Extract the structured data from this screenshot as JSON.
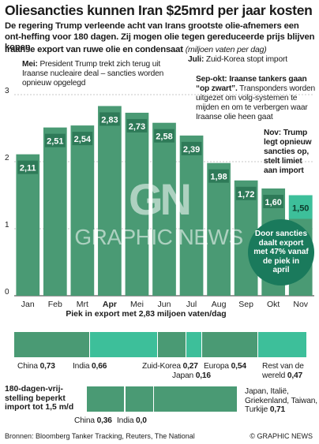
{
  "title": "Oliesancties kunnen Iran $25mrd per jaar kosten",
  "subtitle": "De regering Trump verleende acht van Irans grootste olie-afnemers een ont-heffing voor 180 dagen. Zij mogen olie tegen gereduceerde prijs blijven kopen",
  "axis_title": "Iraanse export van ruwe olie en condensaat",
  "axis_unit": "(miljoen vaten per dag)",
  "colors": {
    "bar": "#4a9a74",
    "bar_dark": "#2e7a58",
    "accent_teal": "#3dbf9a",
    "circle": "#1a7a5c"
  },
  "chart_data": {
    "type": "bar",
    "categories": [
      "Jan",
      "Feb",
      "Mrt",
      "Apr",
      "Mei",
      "Jun",
      "Jul",
      "Aug",
      "Sep",
      "Okt",
      "Nov"
    ],
    "values": [
      2.11,
      2.51,
      2.54,
      2.83,
      2.73,
      2.58,
      2.39,
      1.98,
      1.72,
      1.6,
      1.5
    ],
    "value_labels": [
      "2,11",
      "2,51",
      "2,54",
      "2,83",
      "2,73",
      "2,58",
      "2,39",
      "1,98",
      "1,72",
      "1,60",
      "1,50"
    ],
    "highlight_category": "Apr",
    "yticks": [
      "0",
      "1",
      "2",
      "3"
    ],
    "ylim": [
      0,
      3.2
    ],
    "grid": true
  },
  "annotations": {
    "mei": {
      "bold": "Mei:",
      "text": " President Trump trekt zich terug uit Iraanse nucleaire deal – sancties worden opnieuw opgelegd"
    },
    "juli": {
      "bold": "Juli:",
      "text": " Zuid-Korea stopt import"
    },
    "sep_okt": {
      "bold": "Sep-okt: Iraanse tankers gaan “op zwart”.",
      "text": " Transponders worden uitgezet om volg-systemen te mijden en om te verbergen waar Iraanse olie heen gaat"
    },
    "nov": {
      "bold": "Nov: Trump legt opnieuw sancties op, stelt limiet aan import",
      "text": ""
    }
  },
  "circle_text": "Door sancties daalt export met 47% vanaf de piek in april",
  "peak": {
    "title": "Piek in export met 2,83 miljoen vaten/dag",
    "labels": [
      {
        "name": "China",
        "value": "0,73"
      },
      {
        "name": "India",
        "value": "0,66"
      },
      {
        "name": "Zuid-Korea",
        "value": "0,27"
      },
      {
        "name": "Japan",
        "value": "0,16"
      },
      {
        "name": "Europa",
        "value": "0,54"
      },
      {
        "name": "Rest van de wereld",
        "value": "0,47"
      }
    ]
  },
  "exemption": {
    "title": "180-dagen-vrij-stelling beperkt import tot 1,5 m/d",
    "labels": [
      {
        "name": "China",
        "value": "0,36"
      },
      {
        "name": "India",
        "value": "0,0"
      },
      {
        "name": "Japan, Italië, Griekenland, Taiwan, Turkije",
        "value": "0,71"
      }
    ]
  },
  "footer": "Bronnen: Bloomberg Tanker Tracking, Reuters, The National",
  "copyright": "© GRAPHIC NEWS",
  "watermark": {
    "logo": "GN",
    "text": "GRAPHIC NEWS"
  }
}
